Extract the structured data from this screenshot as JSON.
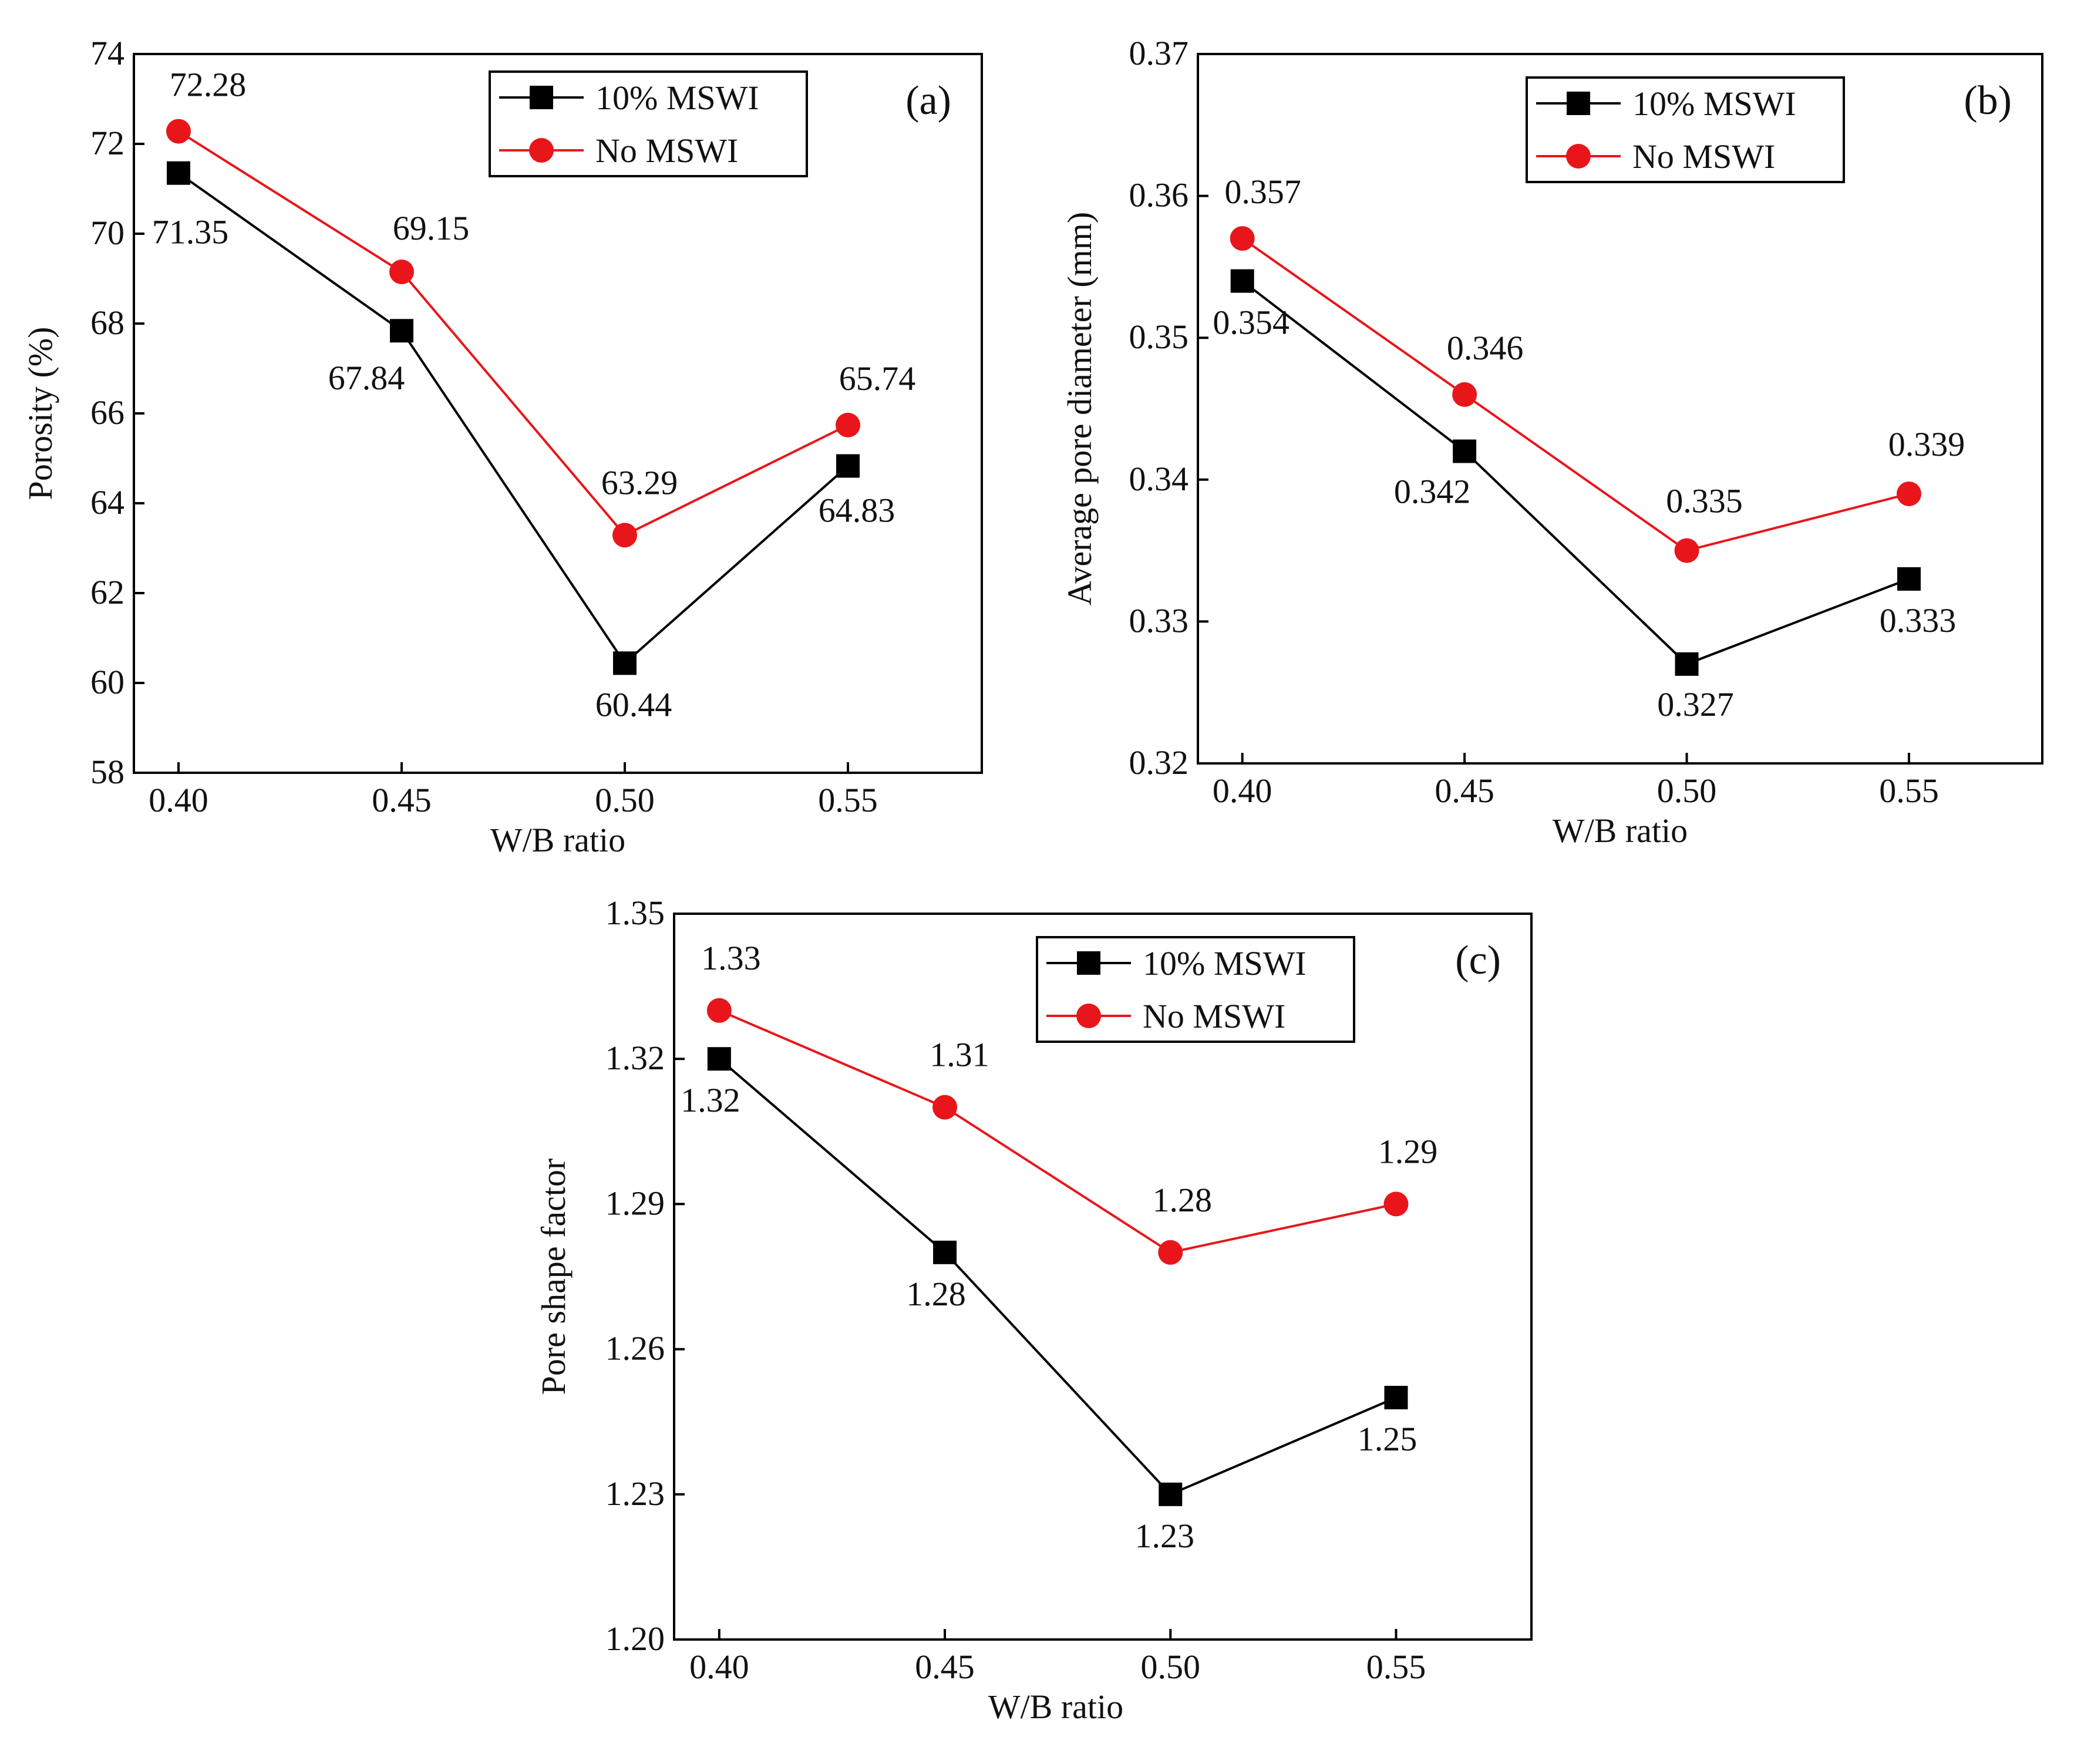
{
  "chart_data": [
    {
      "panel": "(a)",
      "type": "line",
      "xlabel": "W/B ratio",
      "ylabel": "Porosity (%)",
      "categories": [
        "0.40",
        "0.45",
        "0.50",
        "0.55"
      ],
      "xlim": [
        0.39,
        0.58
      ],
      "ylim": [
        58,
        74
      ],
      "yticks": [
        "58",
        "60",
        "62",
        "64",
        "66",
        "68",
        "70",
        "72",
        "74"
      ],
      "series": [
        {
          "name": "10% MSWI",
          "color": "#000000",
          "marker": "square",
          "values": [
            71.35,
            67.84,
            60.44,
            64.83
          ],
          "labels": [
            "71.35",
            "67.84",
            "60.44",
            "64.83"
          ]
        },
        {
          "name": "No  MSWI",
          "color": "#e8161b",
          "marker": "circle",
          "values": [
            72.28,
            69.15,
            63.29,
            65.74
          ],
          "labels": [
            "72.28",
            "69.15",
            "63.29",
            "65.74"
          ]
        }
      ],
      "legend_position": "top-right"
    },
    {
      "panel": "(b)",
      "type": "line",
      "xlabel": "W/B ratio",
      "ylabel": "Average pore diameter (mm)",
      "categories": [
        "0.40",
        "0.45",
        "0.50",
        "0.55"
      ],
      "xlim": [
        0.39,
        0.58
      ],
      "ylim": [
        0.32,
        0.37
      ],
      "yticks": [
        "0.32",
        "0.33",
        "0.34",
        "0.35",
        "0.36",
        "0.37"
      ],
      "series": [
        {
          "name": "10% MSWI",
          "color": "#000000",
          "marker": "square",
          "values": [
            0.354,
            0.342,
            0.327,
            0.333
          ],
          "labels": [
            "0.354",
            "0.342",
            "0.327",
            "0.333"
          ]
        },
        {
          "name": "No  MSWI",
          "color": "#e8161b",
          "marker": "circle",
          "values": [
            0.357,
            0.346,
            0.335,
            0.339
          ],
          "labels": [
            "0.357",
            "0.346",
            "0.335",
            "0.339"
          ]
        }
      ],
      "legend_position": "top-right"
    },
    {
      "panel": "(c)",
      "type": "line",
      "xlabel": "W/B ratio",
      "ylabel": "Pore shape factor",
      "categories": [
        "0.40",
        "0.45",
        "0.50",
        "0.55"
      ],
      "xlim": [
        0.39,
        0.58
      ],
      "ylim": [
        1.2,
        1.35
      ],
      "yticks": [
        "1.20",
        "1.23",
        "1.26",
        "1.29",
        "1.32",
        "1.35"
      ],
      "series": [
        {
          "name": "10% MSWI",
          "color": "#000000",
          "marker": "square",
          "values": [
            1.32,
            1.28,
            1.23,
            1.25
          ],
          "labels": [
            "1.32",
            "1.28",
            "1.23",
            "1.25"
          ]
        },
        {
          "name": "No  MSWI",
          "color": "#e8161b",
          "marker": "circle",
          "values": [
            1.33,
            1.31,
            1.28,
            1.29
          ],
          "labels": [
            "1.33",
            "1.31",
            "1.28",
            "1.29"
          ]
        }
      ],
      "legend_position": "top-right"
    }
  ]
}
